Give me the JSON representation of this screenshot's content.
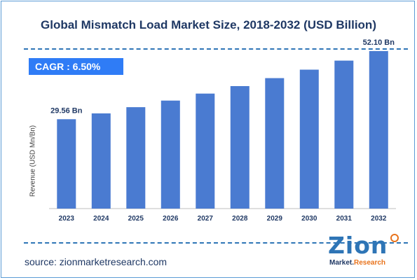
{
  "title": "Global Mismatch Load Market Size, 2018-2032 (USD Billion)",
  "cagr": "CAGR : 6.50%",
  "source": "source: zionmarketresearch.com",
  "logo": {
    "main": "Zion",
    "sub_a": "Market.",
    "sub_b": "Research"
  },
  "colors": {
    "bar": "#4a7bd1",
    "title": "#1f3864",
    "cagr_box": "#2f7cf6",
    "annotation": "#1f3864"
  },
  "chart_data": {
    "type": "bar",
    "categories": [
      "2023",
      "2024",
      "2025",
      "2026",
      "2027",
      "2028",
      "2029",
      "2030",
      "2031",
      "2032"
    ],
    "values": [
      29.56,
      31.48,
      33.53,
      35.71,
      38.03,
      40.5,
      43.13,
      45.94,
      48.92,
      52.1
    ],
    "ylabel": "Revenue (USD Mn/Bn)",
    "ylim": [
      0,
      56
    ],
    "grid": false,
    "data_labels": [
      {
        "category": "2023",
        "text": "29.56 Bn"
      },
      {
        "category": "2032",
        "text": "52.10 Bn"
      }
    ]
  }
}
